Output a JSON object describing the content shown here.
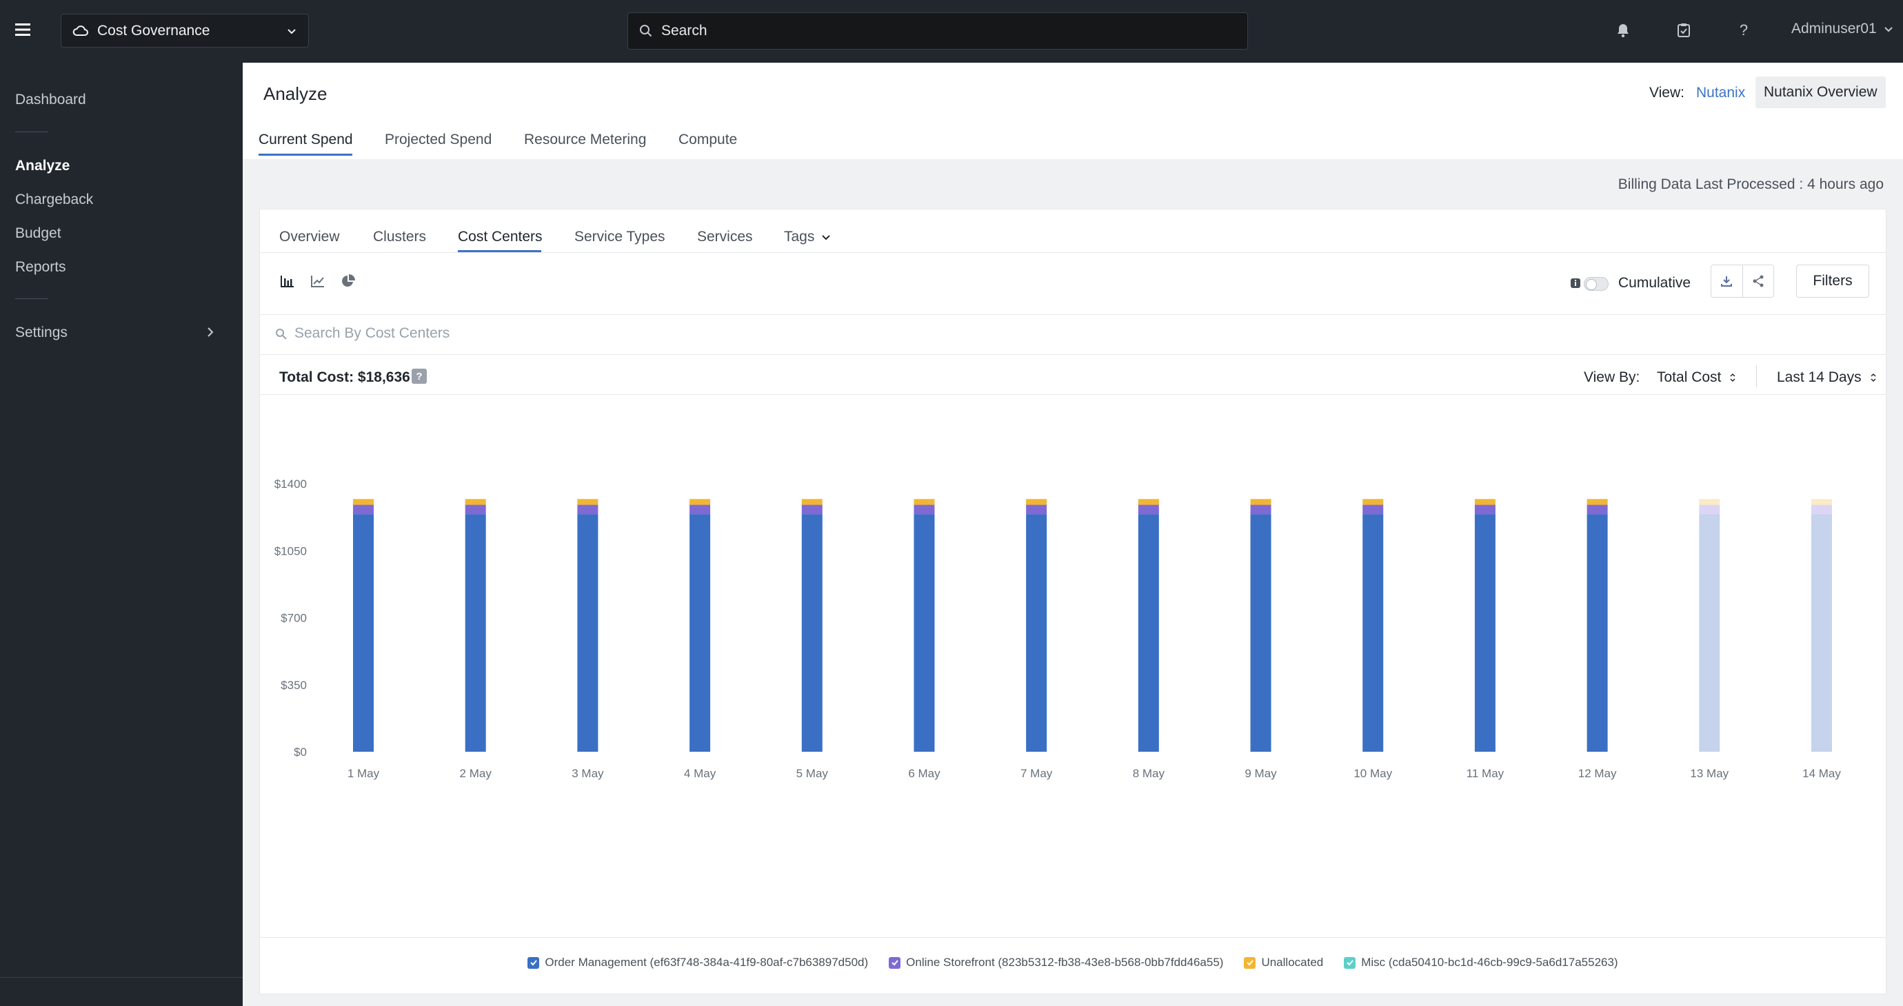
{
  "topbar": {
    "app_name": "Cost Governance",
    "search_placeholder": "Search",
    "user": "Adminuser01"
  },
  "sidebar": {
    "items": [
      {
        "label": "Dashboard"
      },
      {
        "label": "Analyze"
      },
      {
        "label": "Chargeback"
      },
      {
        "label": "Budget"
      },
      {
        "label": "Reports"
      },
      {
        "label": "Settings"
      }
    ],
    "active": "Analyze"
  },
  "header": {
    "title": "Analyze",
    "view_label": "View:",
    "view_link": "Nutanix",
    "view_button": "Nutanix Overview",
    "tabs": [
      {
        "label": "Current Spend"
      },
      {
        "label": "Projected Spend"
      },
      {
        "label": "Resource Metering"
      },
      {
        "label": "Compute"
      }
    ],
    "active_tab": "Current Spend"
  },
  "billing_status": "Billing Data Last Processed : 4 hours ago",
  "panel": {
    "subtabs": [
      {
        "label": "Overview"
      },
      {
        "label": "Clusters"
      },
      {
        "label": "Cost Centers"
      },
      {
        "label": "Service Types"
      },
      {
        "label": "Services"
      },
      {
        "label": "Tags"
      }
    ],
    "active_subtab": "Cost Centers",
    "cumulative_label": "Cumulative",
    "cumulative_on": false,
    "filters_label": "Filters",
    "search_placeholder": "Search By Cost Centers",
    "total_cost_label": "Total Cost: $18,636",
    "total_help": "?",
    "view_by_label": "View By:",
    "view_by_value": "Total Cost",
    "range_value": "Last 14 Days"
  },
  "icons": {
    "hamburger": "menu-icon",
    "cloud": "cloud-icon",
    "search": "search-icon",
    "bell": "bell-icon",
    "tasks": "clipboard-check-icon",
    "help": "help-icon",
    "bar_chart": "bar-chart-icon",
    "line_chart": "line-chart-icon",
    "pie_chart": "pie-chart-icon",
    "download": "download-icon",
    "share": "share-icon"
  },
  "colors": {
    "order_management": "#3a6fc4",
    "online_storefront": "#7f6ad4",
    "unallocated": "#f2b632",
    "misc": "#5ecfc8",
    "accent": "#3b73c6"
  },
  "chart_data": {
    "type": "bar",
    "stacked": true,
    "categories": [
      "1 May",
      "2 May",
      "3 May",
      "4 May",
      "5 May",
      "6 May",
      "7 May",
      "8 May",
      "9 May",
      "10 May",
      "11 May",
      "12 May",
      "13 May",
      "14 May"
    ],
    "series": [
      {
        "name": "Order Management (ef63f748-384a-41f9-80af-c7b63897d50d)",
        "values": [
          1240,
          1240,
          1240,
          1240,
          1240,
          1240,
          1240,
          1240,
          1240,
          1240,
          1240,
          1240,
          1240,
          1240
        ]
      },
      {
        "name": "Online Storefront (823b5312-fb38-43e8-b568-0bb7fdd46a55)",
        "values": [
          50,
          50,
          50,
          50,
          50,
          50,
          50,
          50,
          50,
          50,
          50,
          50,
          50,
          50
        ]
      },
      {
        "name": "Unallocated",
        "values": [
          30,
          30,
          30,
          30,
          30,
          30,
          30,
          30,
          30,
          30,
          30,
          30,
          30,
          30
        ]
      },
      {
        "name": "Misc (cda50410-bc1d-46cb-99c9-5a6d17a55263)",
        "values": [
          0,
          0,
          0,
          0,
          0,
          0,
          0,
          0,
          0,
          0,
          0,
          0,
          0,
          0
        ]
      }
    ],
    "faded_categories": [
      "13 May",
      "14 May"
    ],
    "y_ticks": [
      "$0",
      "$350",
      "$700",
      "$1050",
      "$1400"
    ],
    "ylim": [
      0,
      1400
    ],
    "grid": false,
    "legend_position": "bottom-center"
  }
}
